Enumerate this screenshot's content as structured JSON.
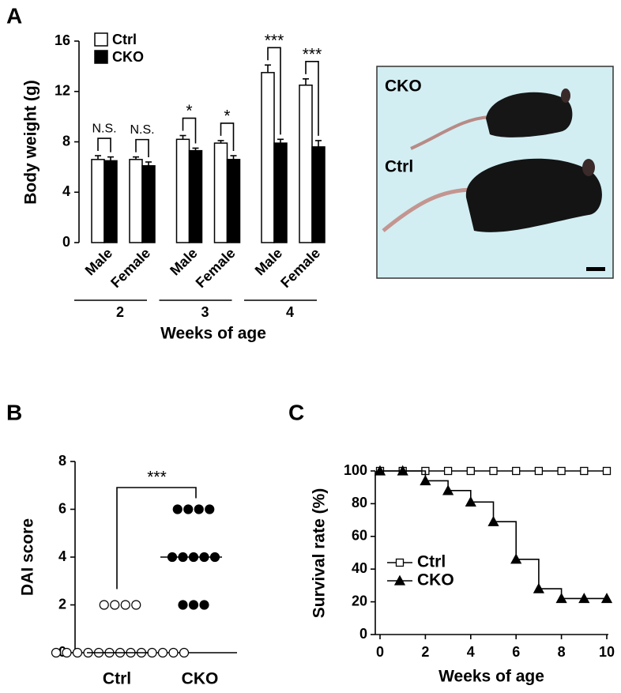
{
  "panels": [
    "A",
    "B",
    "C"
  ],
  "photo": {
    "labels": [
      "CKO",
      "Ctrl"
    ]
  },
  "chart_data": [
    {
      "type": "bar",
      "ylabel": "Body weight (g)",
      "xlabel": "Weeks of age",
      "categories": [
        "Male",
        "Female",
        "Male",
        "Female",
        "Male",
        "Female"
      ],
      "groups": [
        "2",
        "3",
        "4"
      ],
      "series": [
        {
          "name": "Ctrl",
          "color": "#ffffff",
          "values": [
            6.6,
            6.6,
            8.2,
            7.9,
            13.5,
            12.5
          ],
          "errors": [
            0.3,
            0.2,
            0.3,
            0.2,
            0.6,
            0.5
          ]
        },
        {
          "name": "CKO",
          "color": "#000000",
          "values": [
            6.5,
            6.1,
            7.3,
            6.6,
            7.9,
            7.6
          ],
          "errors": [
            0.3,
            0.3,
            0.2,
            0.3,
            0.3,
            0.5
          ]
        }
      ],
      "annotations": [
        "N.S.",
        "N.S.",
        "*",
        "*",
        "***",
        "***"
      ],
      "ylim": [
        0,
        16
      ],
      "yticks": [
        0,
        4,
        8,
        12,
        16
      ]
    },
    {
      "type": "strip",
      "ylabel": "DAI score",
      "categories": [
        "Ctrl",
        "CKO"
      ],
      "series": [
        {
          "color": "#ffffff",
          "values": [
            2,
            2,
            2,
            2,
            0,
            0,
            0,
            0,
            0,
            0,
            0,
            0,
            0,
            0,
            0,
            0,
            0
          ]
        },
        {
          "color": "#000000",
          "values": [
            6,
            6,
            6,
            6,
            4,
            4,
            4,
            4,
            4,
            2,
            2,
            2
          ]
        }
      ],
      "medians": [
        0,
        4
      ],
      "annotation": "***",
      "ylim": [
        0,
        8
      ],
      "yticks": [
        0,
        2,
        4,
        6,
        8
      ]
    },
    {
      "type": "step",
      "xlabel": "Weeks of age",
      "ylabel": "Survival rate (%)",
      "x": [
        0,
        1,
        2,
        3,
        4,
        5,
        6,
        7,
        8,
        9,
        10
      ],
      "series": [
        {
          "name": "Ctrl",
          "color": "#ffffff",
          "marker": "square",
          "values": [
            100,
            100,
            100,
            100,
            100,
            100,
            100,
            100,
            100,
            100,
            100
          ]
        },
        {
          "name": "CKO",
          "color": "#000000",
          "marker": "triangle",
          "values": [
            100,
            100,
            94,
            88,
            81,
            69,
            46,
            28,
            22,
            22,
            22
          ]
        }
      ],
      "xlim": [
        0,
        10
      ],
      "ylim": [
        0,
        100
      ],
      "xticks": [
        0,
        2,
        4,
        6,
        8,
        10
      ],
      "yticks": [
        0,
        20,
        40,
        60,
        80,
        100
      ]
    }
  ]
}
